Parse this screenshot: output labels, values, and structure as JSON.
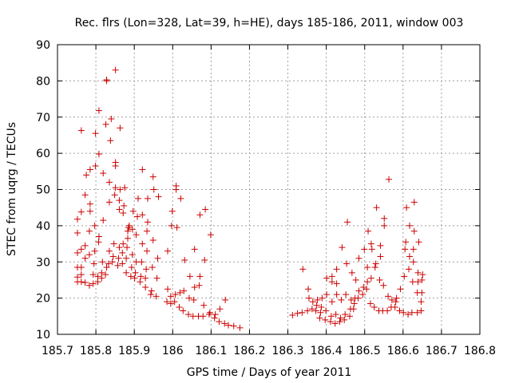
{
  "chart_data": {
    "type": "scatter",
    "title": "Rec. flrs (Lon=328, Lat=39, h=HE), days 185-186, 2011, window 003",
    "xlabel": "GPS time / Days of year 2011",
    "ylabel": "STEC from uqrg / TECUs",
    "xlim": [
      185.7,
      186.8
    ],
    "ylim": [
      10,
      90
    ],
    "xticks": [
      185.7,
      185.8,
      185.9,
      186,
      186.1,
      186.2,
      186.3,
      186.4,
      186.5,
      186.6,
      186.7,
      186.8
    ],
    "xtick_labels": [
      "185.7",
      "185.8",
      "185.9",
      "186",
      "186.1",
      "186.2",
      "186.3",
      "186.4",
      "186.5",
      "186.6",
      "186.7",
      "186.8"
    ],
    "yticks": [
      10,
      20,
      30,
      40,
      50,
      60,
      70,
      80,
      90
    ],
    "ytick_labels": [
      "10",
      "20",
      "30",
      "40",
      "50",
      "60",
      "70",
      "80",
      "90"
    ],
    "grid": true,
    "marker": "plus",
    "color": "#cc0000",
    "series": [
      {
        "points": [
          [
            185.752,
            24.5
          ],
          [
            185.752,
            25.8
          ],
          [
            185.752,
            28.5
          ],
          [
            185.752,
            32.5
          ],
          [
            185.752,
            38
          ],
          [
            185.752,
            41.8
          ],
          [
            185.762,
            24.5
          ],
          [
            185.762,
            26.5
          ],
          [
            185.762,
            28.5
          ],
          [
            185.762,
            33.5
          ],
          [
            185.762,
            43.8
          ],
          [
            185.762,
            66.3
          ],
          [
            185.772,
            24.3
          ],
          [
            185.772,
            31
          ],
          [
            185.772,
            34.5
          ],
          [
            185.772,
            48.5
          ],
          [
            185.775,
            54
          ],
          [
            185.783,
            23.5
          ],
          [
            185.783,
            32
          ],
          [
            185.783,
            38.5
          ],
          [
            185.785,
            44
          ],
          [
            185.785,
            46
          ],
          [
            185.785,
            55.5
          ],
          [
            185.793,
            24
          ],
          [
            185.793,
            26.5
          ],
          [
            185.795,
            29.5
          ],
          [
            185.797,
            33
          ],
          [
            185.797,
            40
          ],
          [
            185.799,
            56.5
          ],
          [
            185.799,
            65.5
          ],
          [
            185.805,
            24.5
          ],
          [
            185.805,
            26
          ],
          [
            185.807,
            35.5
          ],
          [
            185.808,
            37
          ],
          [
            185.808,
            59.8
          ],
          [
            185.808,
            71.8
          ],
          [
            185.815,
            25.5
          ],
          [
            185.815,
            27
          ],
          [
            185.817,
            30
          ],
          [
            185.819,
            41.5
          ],
          [
            185.819,
            54.5
          ],
          [
            185.825,
            26.5
          ],
          [
            185.826,
            68
          ],
          [
            185.828,
            80.3
          ],
          [
            185.828,
            80
          ],
          [
            185.828,
            28.5
          ],
          [
            185.833,
            29.5
          ],
          [
            185.835,
            33
          ],
          [
            185.835,
            46.5
          ],
          [
            185.835,
            52
          ],
          [
            185.838,
            63.5
          ],
          [
            185.84,
            69.5
          ],
          [
            185.843,
            30
          ],
          [
            185.845,
            31.5
          ],
          [
            185.847,
            35
          ],
          [
            185.849,
            48.5
          ],
          [
            185.851,
            50.5
          ],
          [
            185.851,
            56.5
          ],
          [
            185.851,
            57.5
          ],
          [
            185.851,
            83
          ],
          [
            185.857,
            29
          ],
          [
            185.859,
            31
          ],
          [
            185.861,
            34
          ],
          [
            185.861,
            44.5
          ],
          [
            185.861,
            47
          ],
          [
            185.863,
            50
          ],
          [
            185.863,
            67
          ],
          [
            185.869,
            29.5
          ],
          [
            185.869,
            32.5
          ],
          [
            185.871,
            35
          ],
          [
            185.871,
            43.5
          ],
          [
            185.873,
            45.5
          ],
          [
            185.875,
            50.5
          ],
          [
            185.879,
            27
          ],
          [
            185.879,
            31
          ],
          [
            185.881,
            34
          ],
          [
            185.883,
            36.5
          ],
          [
            185.883,
            38.5
          ],
          [
            185.885,
            39.5
          ],
          [
            185.887,
            40
          ],
          [
            185.891,
            26
          ],
          [
            185.893,
            28.5
          ],
          [
            185.895,
            32
          ],
          [
            185.895,
            39
          ],
          [
            185.897,
            44
          ],
          [
            185.901,
            25.5
          ],
          [
            185.903,
            27
          ],
          [
            185.905,
            30
          ],
          [
            185.905,
            37.5
          ],
          [
            185.908,
            42.5
          ],
          [
            185.91,
            47.5
          ],
          [
            185.915,
            24.5
          ],
          [
            185.917,
            26
          ],
          [
            185.919,
            30
          ],
          [
            185.921,
            35
          ],
          [
            185.921,
            43
          ],
          [
            185.921,
            55.5
          ],
          [
            185.929,
            23
          ],
          [
            185.929,
            25.5
          ],
          [
            185.931,
            28
          ],
          [
            185.933,
            33
          ],
          [
            185.933,
            38.5
          ],
          [
            185.935,
            41
          ],
          [
            185.935,
            47.5
          ],
          [
            185.943,
            21
          ],
          [
            185.945,
            22
          ],
          [
            185.947,
            28.5
          ],
          [
            185.949,
            36
          ],
          [
            185.949,
            53.5
          ],
          [
            185.951,
            50
          ],
          [
            185.957,
            20.5
          ],
          [
            185.959,
            25.5
          ],
          [
            185.961,
            31
          ],
          [
            185.963,
            48
          ],
          [
            185.985,
            19
          ],
          [
            185.987,
            22.5
          ],
          [
            185.987,
            33
          ],
          [
            185.995,
            18.5
          ],
          [
            185.995,
            20.5
          ],
          [
            185.997,
            40
          ],
          [
            185.999,
            44
          ],
          [
            186.005,
            19
          ],
          [
            186.007,
            21
          ],
          [
            186.009,
            51
          ],
          [
            186.009,
            50
          ],
          [
            186.011,
            39.5
          ],
          [
            186.017,
            17.5
          ],
          [
            186.019,
            21.5
          ],
          [
            186.021,
            47.5
          ],
          [
            186.027,
            16.5
          ],
          [
            186.029,
            22
          ],
          [
            186.031,
            30.5
          ],
          [
            186.041,
            15.5
          ],
          [
            186.043,
            20
          ],
          [
            186.045,
            26
          ],
          [
            186.053,
            15
          ],
          [
            186.055,
            19.5
          ],
          [
            186.057,
            23
          ],
          [
            186.057,
            33.5
          ],
          [
            186.067,
            15
          ],
          [
            186.069,
            23.5
          ],
          [
            186.071,
            26
          ],
          [
            186.071,
            43
          ],
          [
            186.079,
            15
          ],
          [
            186.081,
            18
          ],
          [
            186.083,
            30.5
          ],
          [
            186.085,
            44.5
          ],
          [
            186.095,
            15.5
          ],
          [
            186.097,
            16
          ],
          [
            186.099,
            37.5
          ],
          [
            186.109,
            14.5
          ],
          [
            186.111,
            15.5
          ],
          [
            186.121,
            13.5
          ],
          [
            186.123,
            17
          ],
          [
            186.135,
            13
          ],
          [
            186.137,
            19.5
          ],
          [
            186.145,
            12.5
          ],
          [
            186.159,
            12.3
          ],
          [
            186.175,
            11.8
          ],
          [
            186.312,
            15.3
          ],
          [
            186.325,
            15.8
          ],
          [
            186.337,
            16
          ],
          [
            186.339,
            28
          ],
          [
            186.351,
            16.5
          ],
          [
            186.353,
            22.5
          ],
          [
            186.355,
            20
          ],
          [
            186.363,
            17
          ],
          [
            186.365,
            19
          ],
          [
            186.373,
            16.5
          ],
          [
            186.375,
            18
          ],
          [
            186.377,
            19.5
          ],
          [
            186.383,
            14.5
          ],
          [
            186.385,
            16
          ],
          [
            186.387,
            17.5
          ],
          [
            186.389,
            20
          ],
          [
            186.397,
            14
          ],
          [
            186.399,
            16.5
          ],
          [
            186.401,
            21
          ],
          [
            186.401,
            25.5
          ],
          [
            186.411,
            13.5
          ],
          [
            186.413,
            15
          ],
          [
            186.415,
            19
          ],
          [
            186.415,
            24.5
          ],
          [
            186.415,
            26
          ],
          [
            186.423,
            13
          ],
          [
            186.425,
            15.5
          ],
          [
            186.427,
            21
          ],
          [
            186.427,
            24
          ],
          [
            186.427,
            28
          ],
          [
            186.435,
            13.5
          ],
          [
            186.437,
            14.5
          ],
          [
            186.439,
            19.5
          ],
          [
            186.441,
            34
          ],
          [
            186.447,
            14
          ],
          [
            186.449,
            15.5
          ],
          [
            186.451,
            21
          ],
          [
            186.453,
            29.5
          ],
          [
            186.455,
            41
          ],
          [
            186.461,
            15
          ],
          [
            186.463,
            17
          ],
          [
            186.465,
            19.5
          ],
          [
            186.467,
            27
          ],
          [
            186.471,
            17
          ],
          [
            186.473,
            18.5
          ],
          [
            186.475,
            20
          ],
          [
            186.477,
            25
          ],
          [
            186.483,
            20
          ],
          [
            186.485,
            22
          ],
          [
            186.485,
            31
          ],
          [
            186.495,
            21
          ],
          [
            186.497,
            23
          ],
          [
            186.499,
            33.5
          ],
          [
            186.505,
            22.5
          ],
          [
            186.507,
            24.5
          ],
          [
            186.507,
            28.5
          ],
          [
            186.509,
            38.5
          ],
          [
            186.515,
            18.5
          ],
          [
            186.517,
            25.5
          ],
          [
            186.517,
            35
          ],
          [
            186.519,
            33.5
          ],
          [
            186.525,
            17.5
          ],
          [
            186.527,
            28.5
          ],
          [
            186.529,
            29.5
          ],
          [
            186.531,
            45
          ],
          [
            186.537,
            16.5
          ],
          [
            186.539,
            25
          ],
          [
            186.541,
            31.5
          ],
          [
            186.541,
            34.5
          ],
          [
            186.547,
            16.5
          ],
          [
            186.549,
            23.5
          ],
          [
            186.551,
            40
          ],
          [
            186.551,
            42
          ],
          [
            186.559,
            16.5
          ],
          [
            186.561,
            20.5
          ],
          [
            186.563,
            52.8
          ],
          [
            186.569,
            17.5
          ],
          [
            186.571,
            19.5
          ],
          [
            186.579,
            17.5
          ],
          [
            186.581,
            19
          ],
          [
            186.583,
            20
          ],
          [
            186.591,
            16.5
          ],
          [
            186.593,
            22.5
          ],
          [
            186.601,
            16
          ],
          [
            186.603,
            26
          ],
          [
            186.605,
            33.5
          ],
          [
            186.607,
            35.5
          ],
          [
            186.609,
            45
          ],
          [
            186.613,
            15.5
          ],
          [
            186.615,
            28
          ],
          [
            186.617,
            31.5
          ],
          [
            186.617,
            40
          ],
          [
            186.623,
            16
          ],
          [
            186.625,
            24.5
          ],
          [
            186.627,
            30
          ],
          [
            186.627,
            33.5
          ],
          [
            186.629,
            38.5
          ],
          [
            186.629,
            46.5
          ],
          [
            186.637,
            16
          ],
          [
            186.637,
            21.5
          ],
          [
            186.639,
            24.5
          ],
          [
            186.639,
            27
          ],
          [
            186.641,
            35.5
          ],
          [
            186.647,
            16.5
          ],
          [
            186.647,
            19
          ],
          [
            186.649,
            21.5
          ],
          [
            186.649,
            25
          ],
          [
            186.651,
            26.5
          ]
        ]
      }
    ]
  }
}
